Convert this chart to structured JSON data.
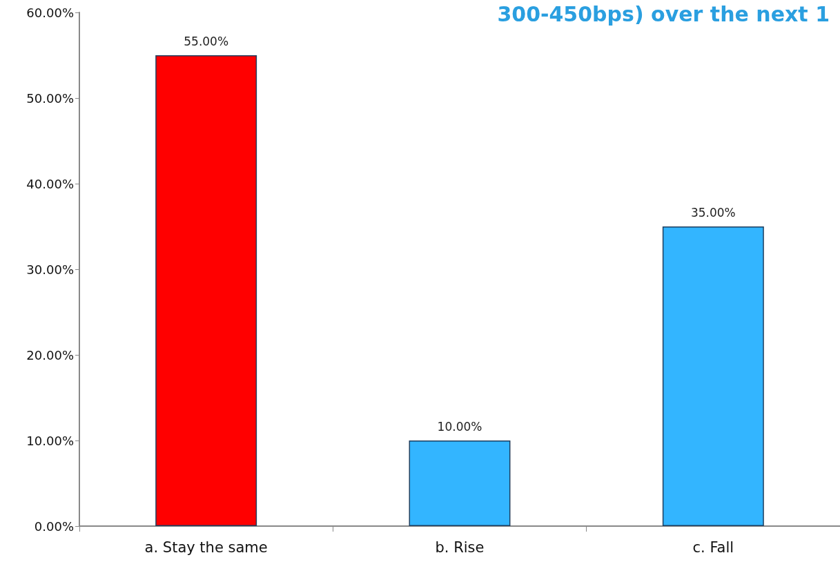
{
  "chart_data": {
    "type": "bar",
    "title": "300-450bps) over the next 1",
    "categories": [
      "a. Stay the same",
      "b. Rise",
      "c. Fall"
    ],
    "values": [
      55,
      10,
      35
    ],
    "colors": [
      "#ff0000",
      "#33b5ff",
      "#33b5ff"
    ],
    "value_labels": [
      "55.00%",
      "10.00%",
      "35.00%"
    ],
    "ylim": [
      0,
      60
    ],
    "yticks": [
      {
        "value": 0,
        "label": "0.00%"
      },
      {
        "value": 10,
        "label": "10.00%"
      },
      {
        "value": 20,
        "label": "20.00%"
      },
      {
        "value": 30,
        "label": "30.00%"
      },
      {
        "value": 40,
        "label": "40.00%"
      },
      {
        "value": 50,
        "label": "50.00%"
      },
      {
        "value": 60,
        "label": "60.00%"
      }
    ],
    "grid": false
  }
}
